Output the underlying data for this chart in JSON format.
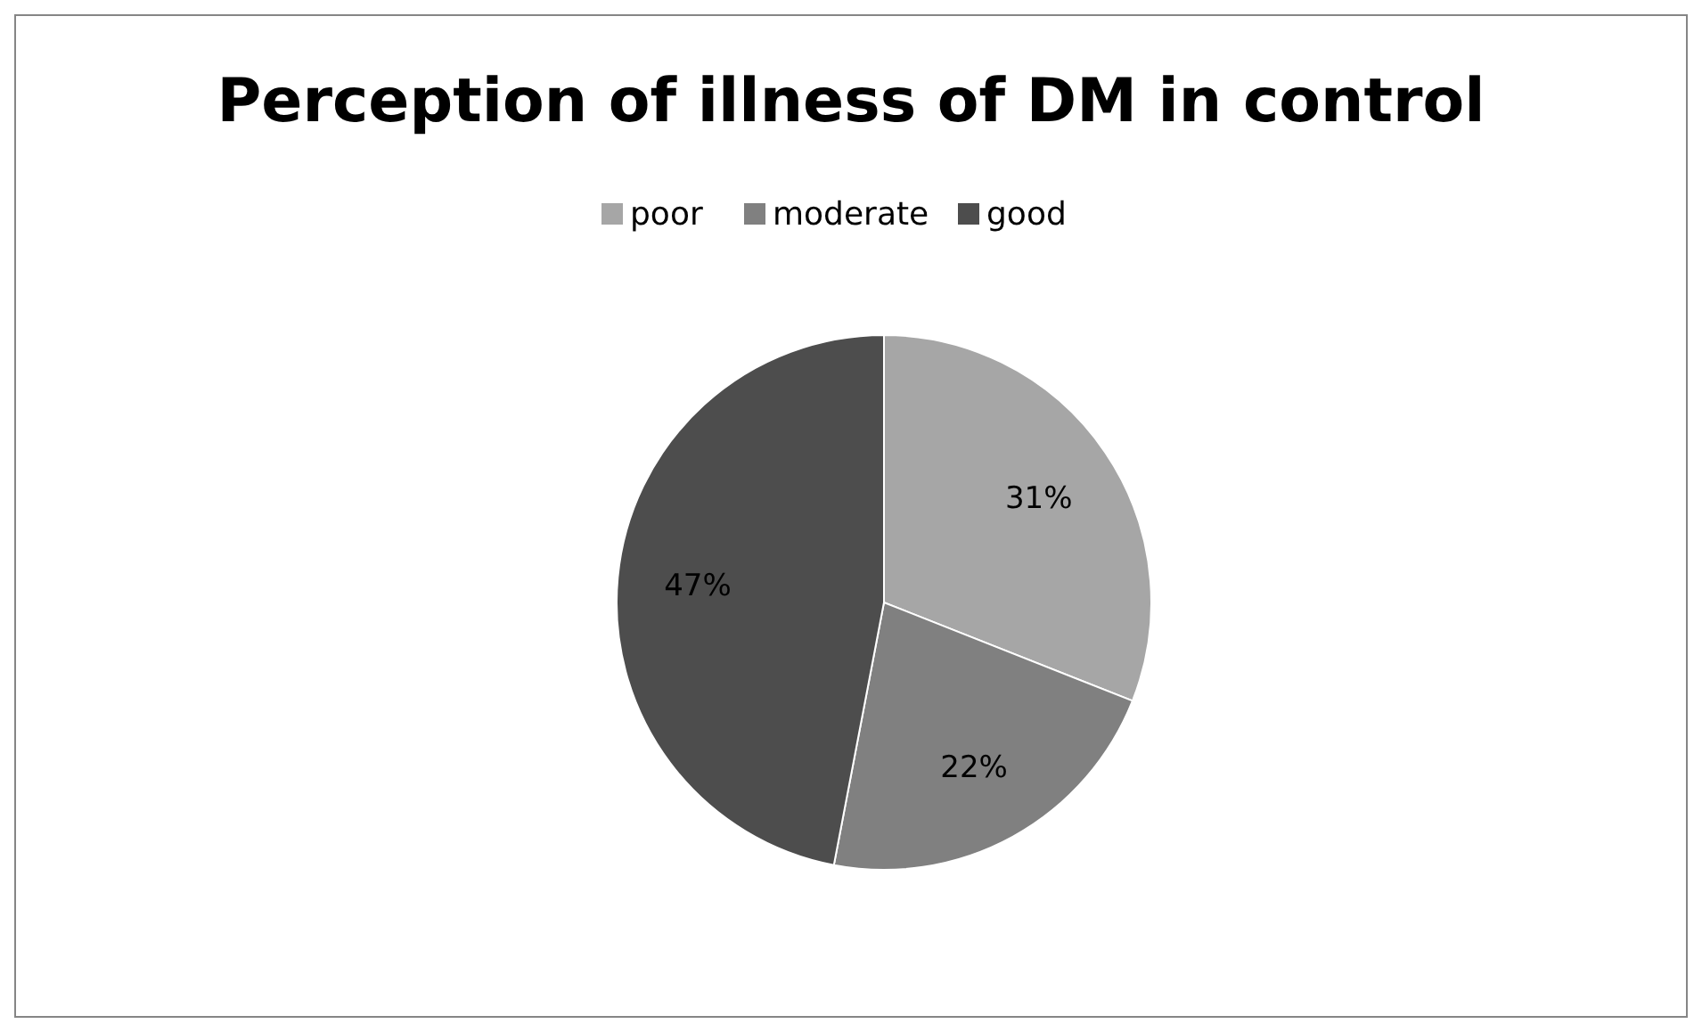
{
  "chart_data": {
    "type": "pie",
    "title": "Perception of illness of DM in control",
    "categories": [
      "poor",
      "moderate",
      "good"
    ],
    "values": [
      31,
      22,
      47
    ],
    "value_labels": [
      "31%",
      "22%",
      "47%"
    ],
    "colors": [
      "#a6a6a6",
      "#808080",
      "#4d4d4d"
    ],
    "legend": "top"
  }
}
